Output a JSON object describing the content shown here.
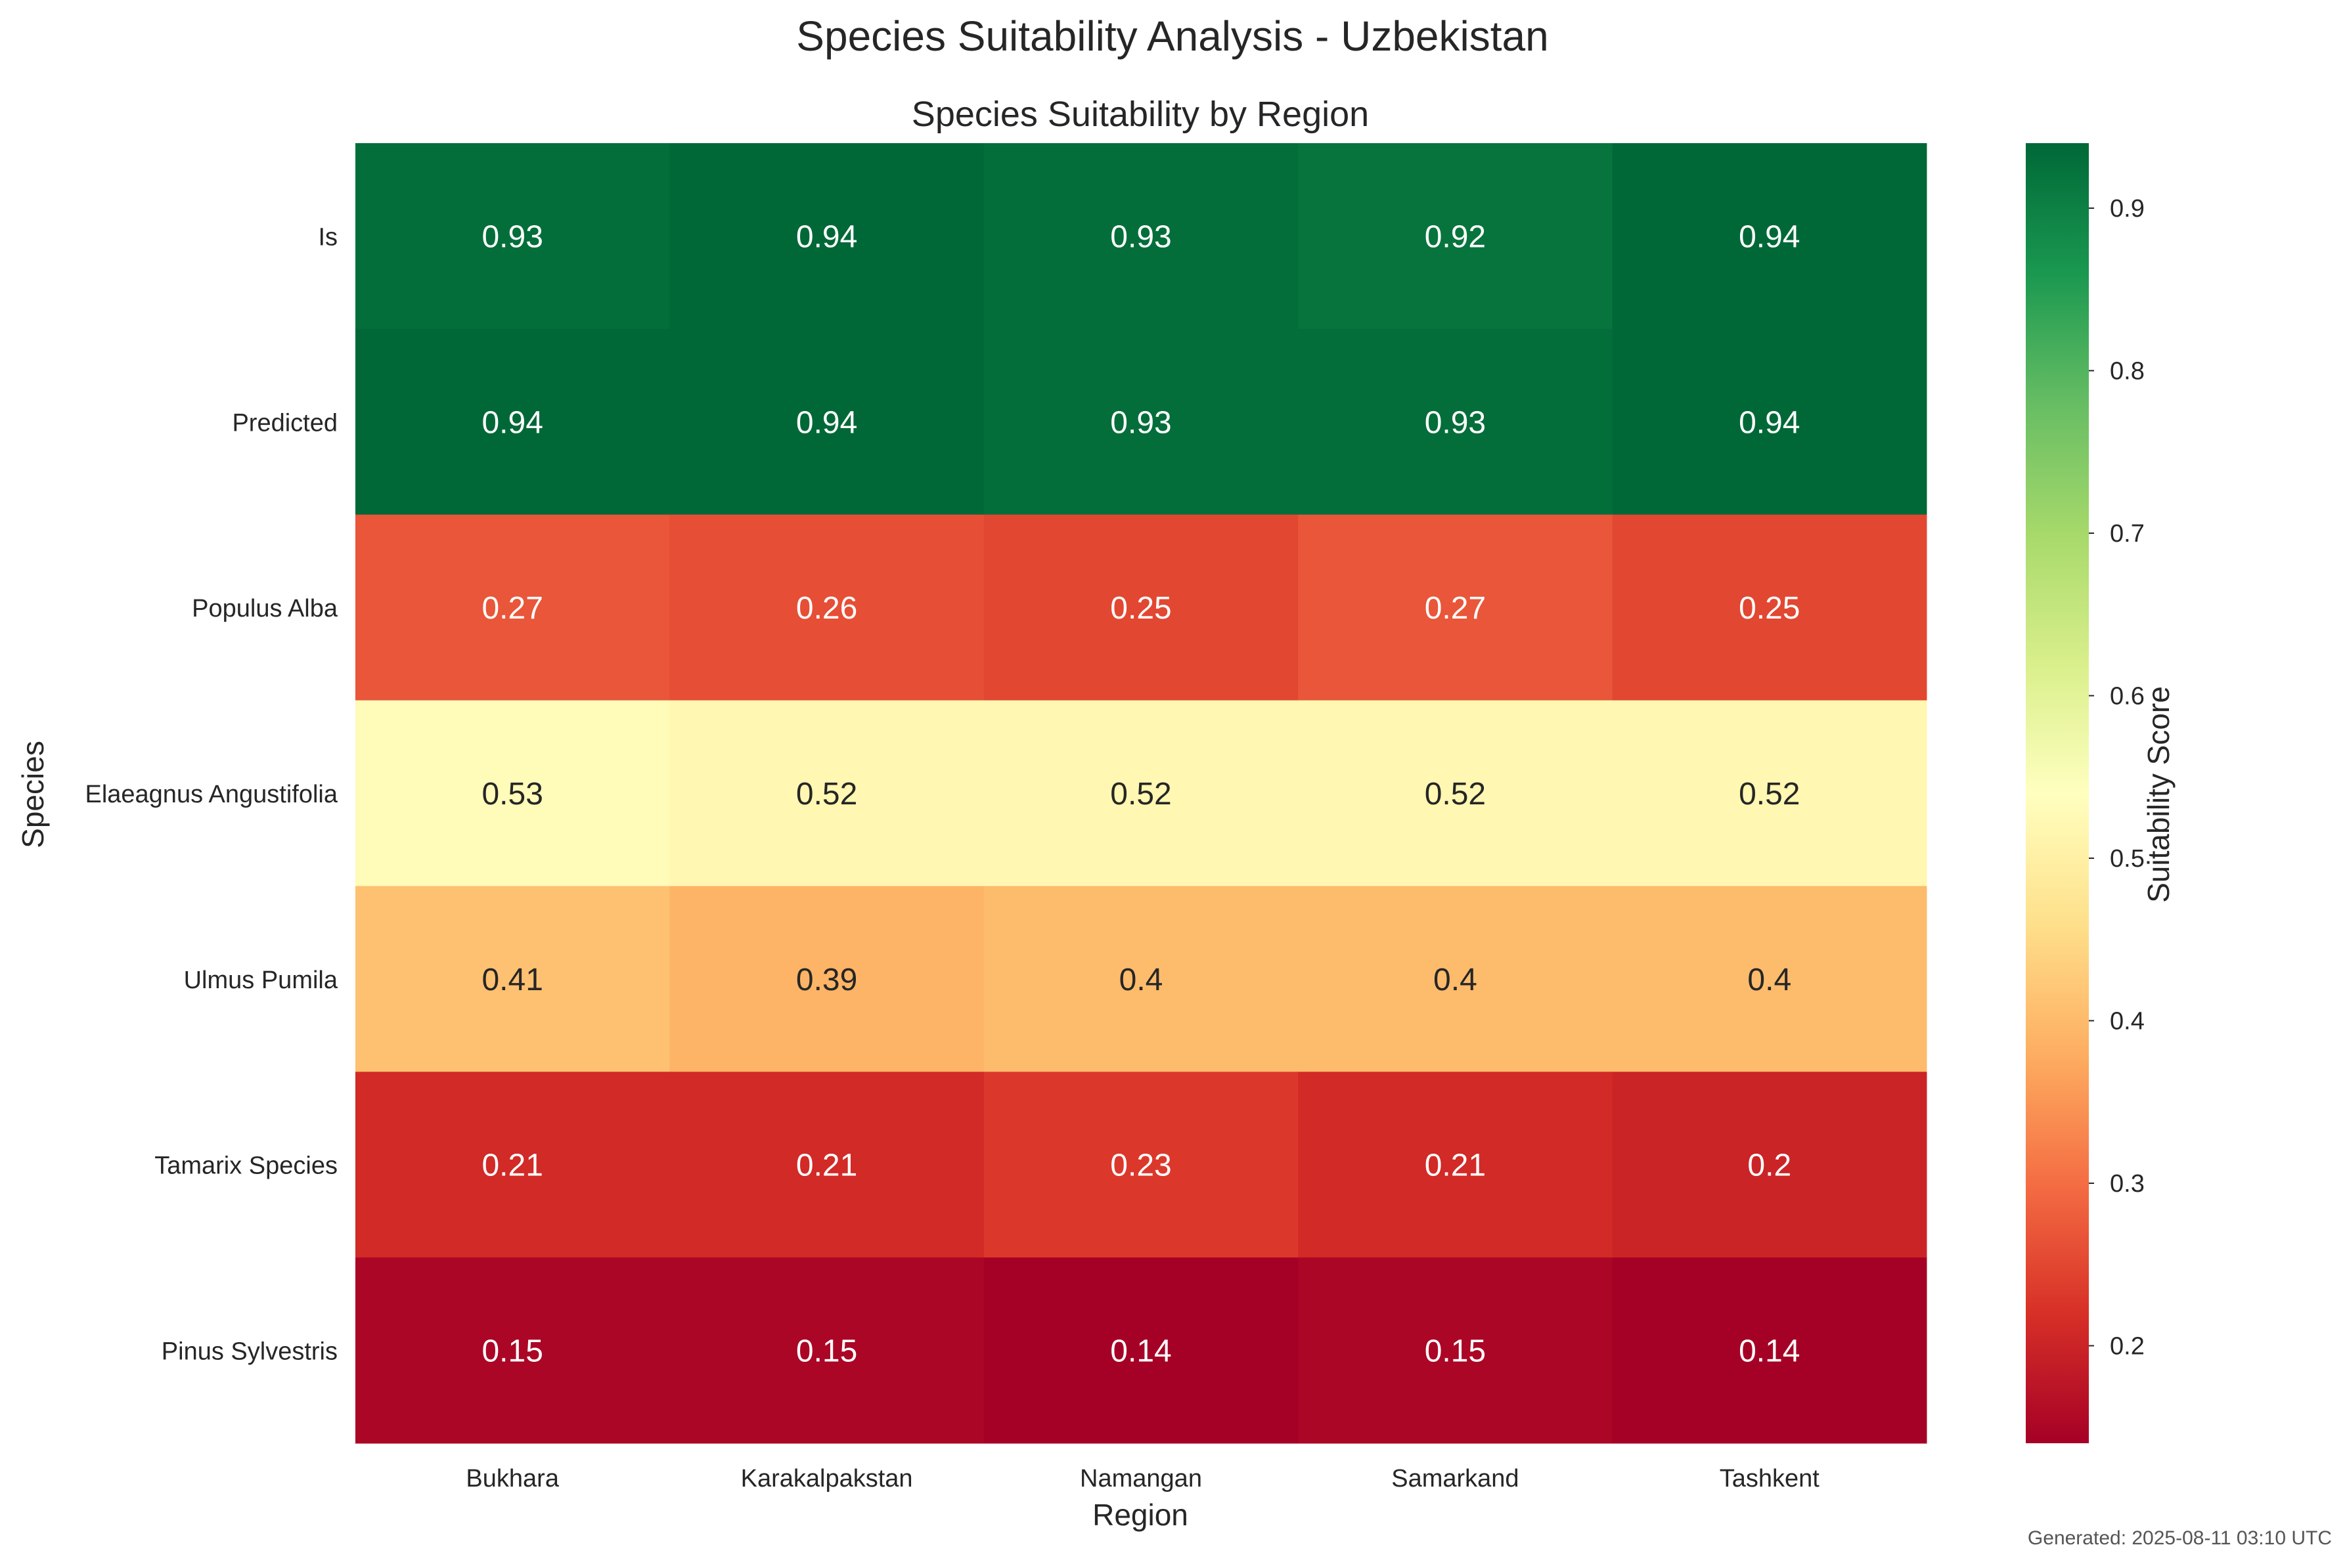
{
  "suptitle": "Species Suitability Analysis - Uzbekistan",
  "footer": "Generated: 2025-08-11 03:10 UTC",
  "chart_data": {
    "type": "heatmap",
    "title": "Species Suitability by Region",
    "xlabel": "Region",
    "ylabel": "Species",
    "x_categories": [
      "Bukhara",
      "Karakalpakstan",
      "Namangan",
      "Samarkand",
      "Tashkent"
    ],
    "y_categories": [
      "Is",
      "Predicted",
      "Populus Alba",
      "Elaeagnus Angustifolia",
      "Ulmus Pumila",
      "Tamarix Species",
      "Pinus Sylvestris"
    ],
    "values": [
      [
        0.93,
        0.94,
        0.93,
        0.92,
        0.94
      ],
      [
        0.94,
        0.94,
        0.93,
        0.93,
        0.94
      ],
      [
        0.27,
        0.26,
        0.25,
        0.27,
        0.25
      ],
      [
        0.53,
        0.52,
        0.52,
        0.52,
        0.52
      ],
      [
        0.41,
        0.39,
        0.4,
        0.4,
        0.4
      ],
      [
        0.21,
        0.21,
        0.23,
        0.21,
        0.2
      ],
      [
        0.15,
        0.15,
        0.14,
        0.15,
        0.14
      ]
    ],
    "colormap": "RdYlGn",
    "vmin": 0.14,
    "vmax": 0.94,
    "colorbar": {
      "label": "Suitability Score",
      "ticks": [
        0.2,
        0.3,
        0.4,
        0.5,
        0.6,
        0.7,
        0.8,
        0.9
      ]
    },
    "grid": false
  }
}
